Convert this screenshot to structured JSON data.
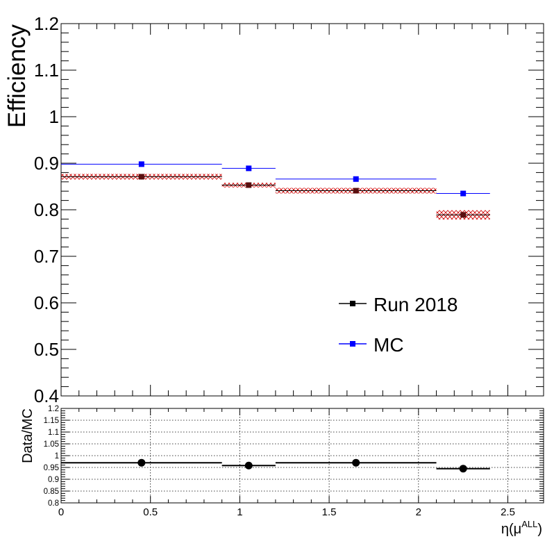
{
  "chart_data": [
    {
      "type": "scatter",
      "panel": "main",
      "ylabel": "Efficiency",
      "xlabel": "",
      "xlim": [
        0,
        2.7
      ],
      "ylim": [
        0.4,
        1.2
      ],
      "yticks": [
        "0.4",
        "0.5",
        "0.6",
        "0.7",
        "0.8",
        "0.9",
        "1",
        "1.1",
        "1.2"
      ],
      "grid": false,
      "legend": "bottom-right",
      "series": [
        {
          "name": "Run 2018",
          "color": "#000000",
          "marker_color": "#5a0f0f",
          "band_color": "#cc0000",
          "points": [
            {
              "x": 0.45,
              "xlow": 0.0,
              "xhigh": 0.9,
              "y": 0.871,
              "err": 0.006
            },
            {
              "x": 1.05,
              "xlow": 0.9,
              "xhigh": 1.2,
              "y": 0.853,
              "err": 0.005
            },
            {
              "x": 1.65,
              "xlow": 1.2,
              "xhigh": 2.1,
              "y": 0.841,
              "err": 0.006
            },
            {
              "x": 2.25,
              "xlow": 2.1,
              "xhigh": 2.4,
              "y": 0.789,
              "err": 0.01
            }
          ]
        },
        {
          "name": "MC",
          "color": "#0000ff",
          "marker_color": "#0000ff",
          "points": [
            {
              "x": 0.45,
              "xlow": 0.0,
              "xhigh": 0.9,
              "y": 0.898
            },
            {
              "x": 1.05,
              "xlow": 0.9,
              "xhigh": 1.2,
              "y": 0.889
            },
            {
              "x": 1.65,
              "xlow": 1.2,
              "xhigh": 2.1,
              "y": 0.866
            },
            {
              "x": 2.25,
              "xlow": 2.1,
              "xhigh": 2.4,
              "y": 0.835
            }
          ]
        }
      ]
    },
    {
      "type": "scatter",
      "panel": "ratio",
      "ylabel": "Data/MC",
      "xlabel": "η(μALL)",
      "xlabel_base": "η(μ",
      "xlabel_sup": "ALL",
      "xlabel_close": ")",
      "xlim": [
        0,
        2.7
      ],
      "ylim": [
        0.8,
        1.2
      ],
      "xticks": [
        "0",
        "0.5",
        "1",
        "1.5",
        "2",
        "2.5"
      ],
      "yticks": [
        "0.8",
        "0.85",
        "0.9",
        "0.95",
        "1",
        "1.05",
        "1.1",
        "1.15",
        "1.2"
      ],
      "grid": true,
      "series": [
        {
          "name": "",
          "color": "#000000",
          "points": [
            {
              "x": 0.45,
              "xlow": 0.0,
              "xhigh": 0.9,
              "y": 0.97
            },
            {
              "x": 1.05,
              "xlow": 0.9,
              "xhigh": 1.2,
              "y": 0.958
            },
            {
              "x": 1.65,
              "xlow": 1.2,
              "xhigh": 2.1,
              "y": 0.97
            },
            {
              "x": 2.25,
              "xlow": 2.1,
              "xhigh": 2.4,
              "y": 0.945
            }
          ]
        }
      ]
    }
  ]
}
